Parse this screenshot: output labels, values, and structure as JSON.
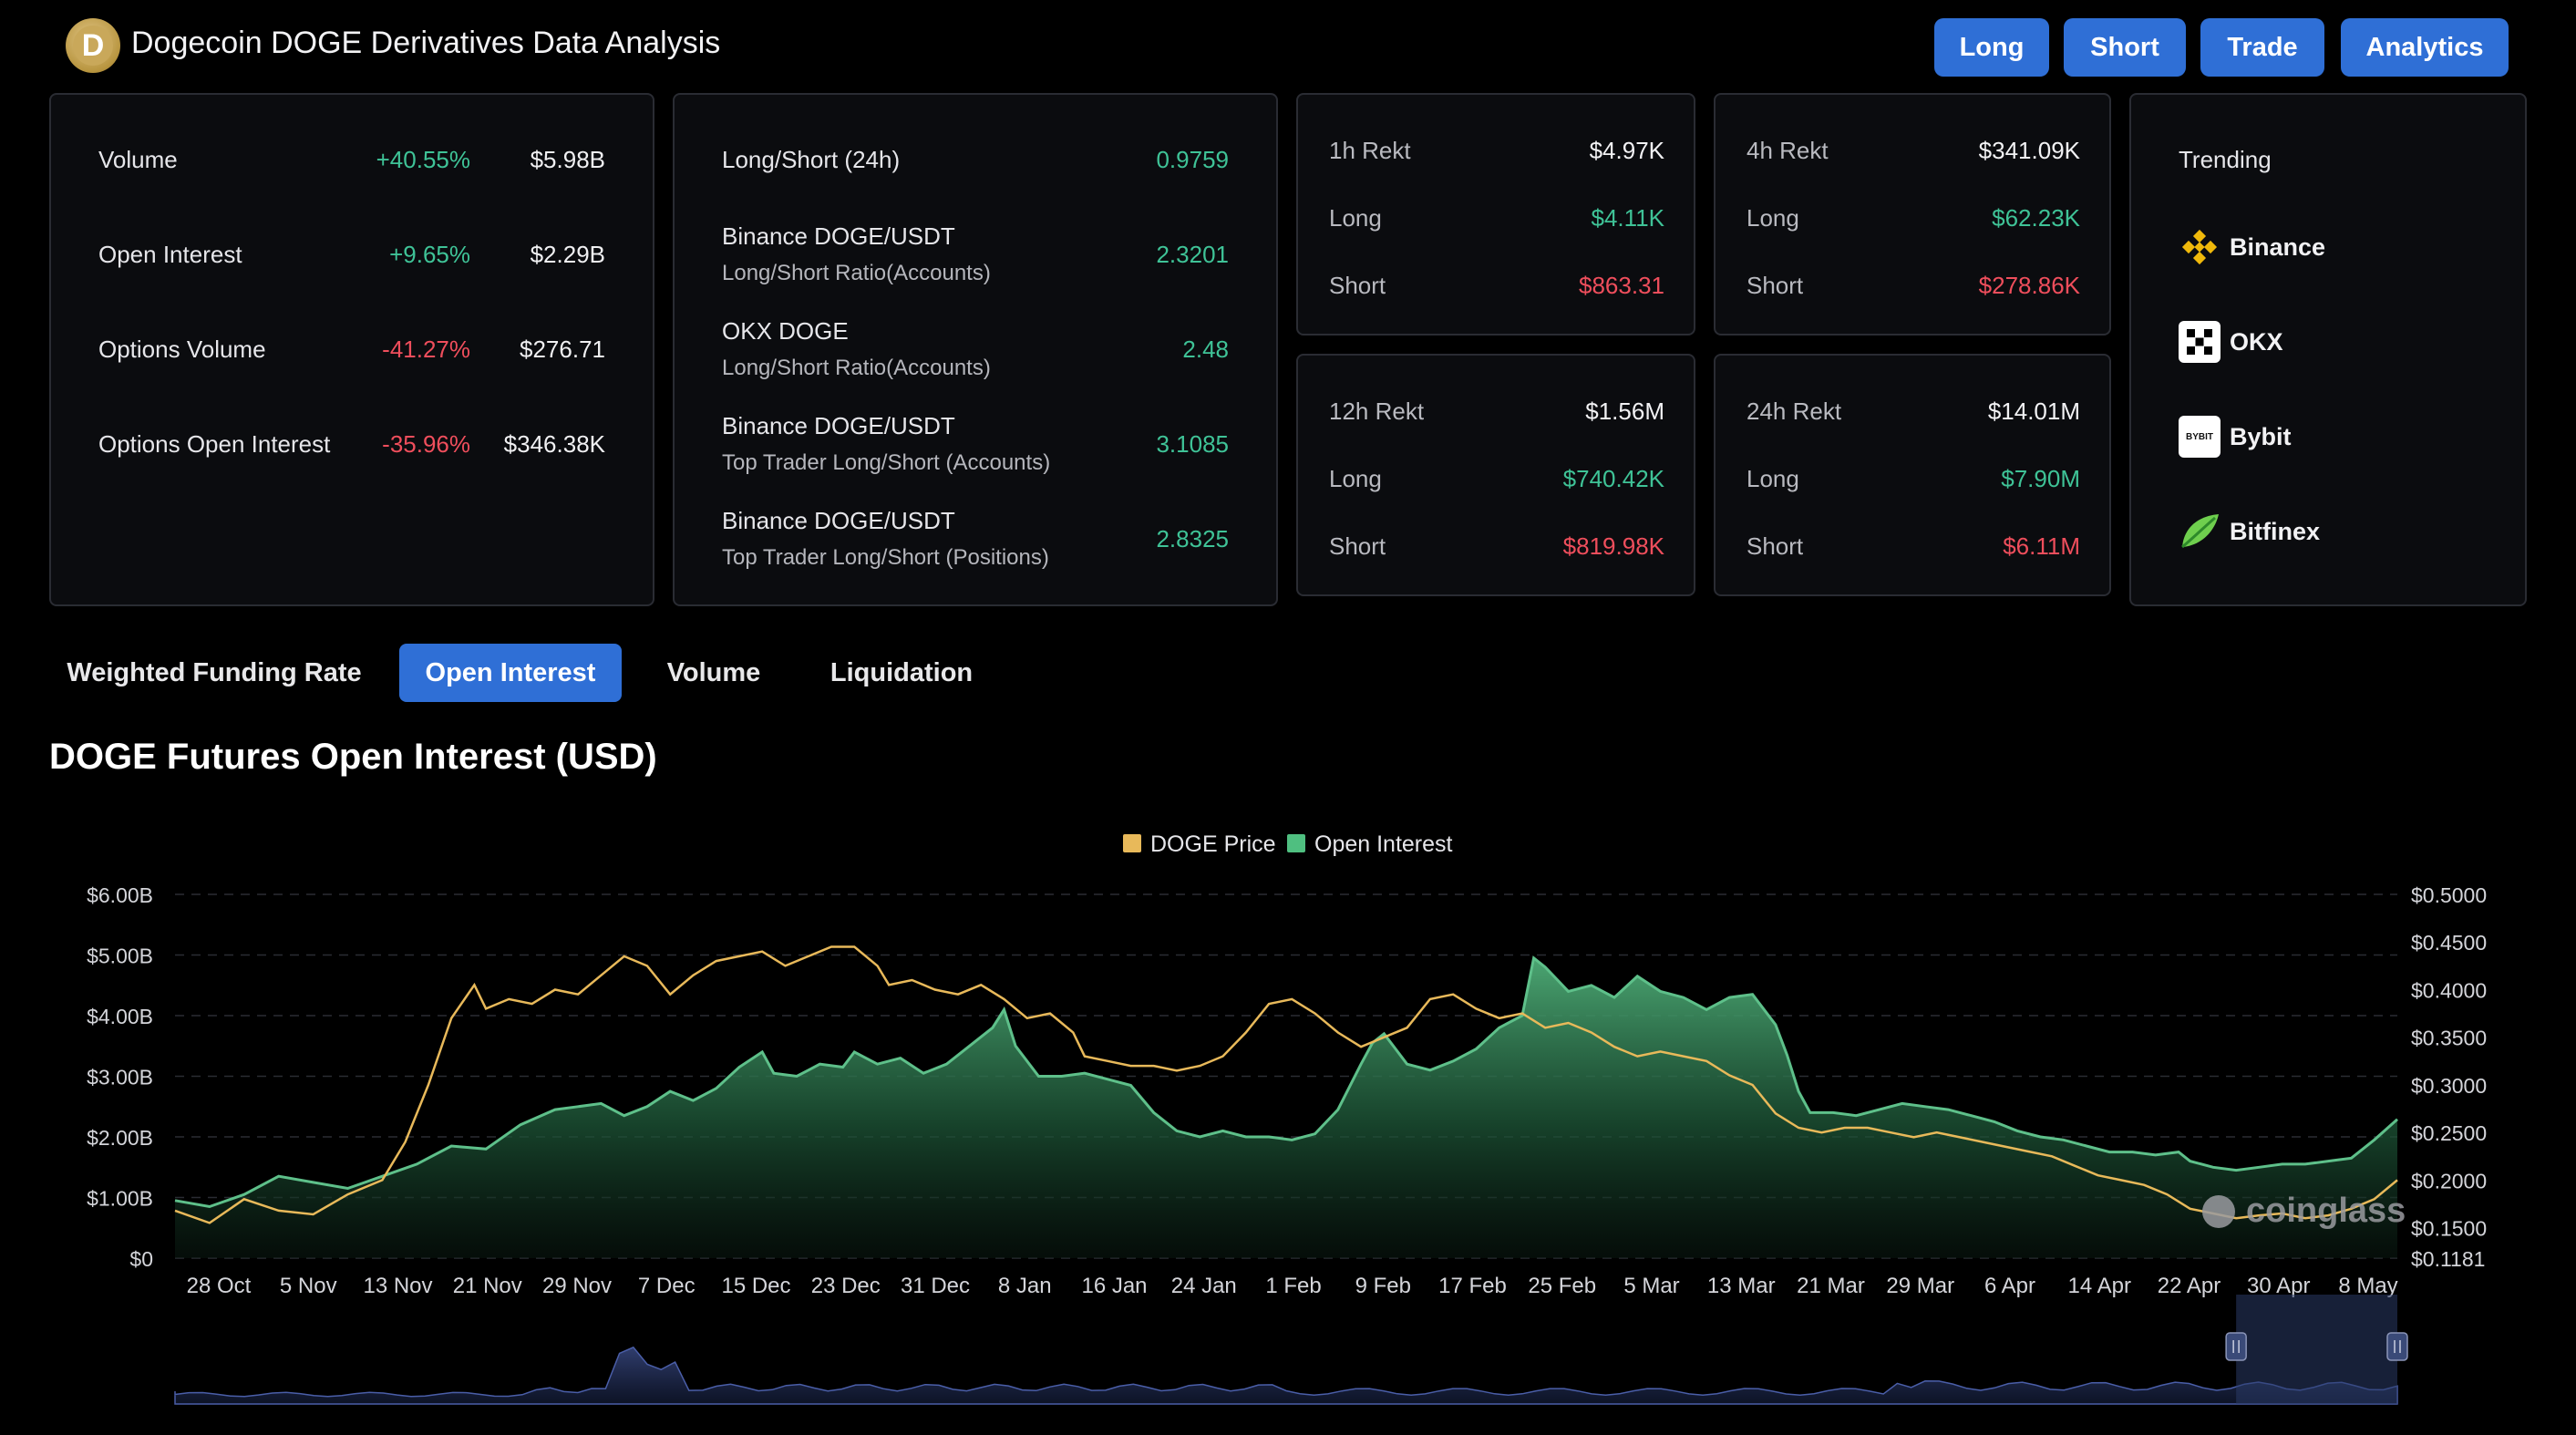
{
  "header": {
    "title": "Dogecoin DOGE Derivatives Data Analysis",
    "logo_glyph": "D",
    "buttons": [
      "Long",
      "Short",
      "Trade",
      "Analytics"
    ]
  },
  "summary": [
    {
      "label": "Volume",
      "change": "+40.55%",
      "value": "$5.98B",
      "positive": true
    },
    {
      "label": "Open Interest",
      "change": "+9.65%",
      "value": "$2.29B",
      "positive": true
    },
    {
      "label": "Options Volume",
      "change": "-41.27%",
      "value": "$276.71",
      "positive": false
    },
    {
      "label": "Options Open Interest",
      "change": "-35.96%",
      "value": "$346.38K",
      "positive": false
    }
  ],
  "long_short": {
    "title": "Long/Short (24h)",
    "title_value": "0.9759",
    "rows": [
      {
        "line1": "Binance DOGE/USDT",
        "line2": "Long/Short Ratio(Accounts)",
        "value": "2.3201"
      },
      {
        "line1": "OKX DOGE",
        "line2": "Long/Short Ratio(Accounts)",
        "value": "2.48"
      },
      {
        "line1": "Binance DOGE/USDT",
        "line2": "Top Trader Long/Short (Accounts)",
        "value": "3.1085"
      },
      {
        "line1": "Binance DOGE/USDT",
        "line2": "Top Trader Long/Short (Positions)",
        "value": "2.8325"
      }
    ]
  },
  "rekt": [
    {
      "title": "1h Rekt",
      "total": "$4.97K",
      "long_label": "Long",
      "long": "$4.11K",
      "short_label": "Short",
      "short": "$863.31"
    },
    {
      "title": "4h Rekt",
      "total": "$341.09K",
      "long_label": "Long",
      "long": "$62.23K",
      "short_label": "Short",
      "short": "$278.86K"
    },
    {
      "title": "12h Rekt",
      "total": "$1.56M",
      "long_label": "Long",
      "long": "$740.42K",
      "short_label": "Short",
      "short": "$819.98K"
    },
    {
      "title": "24h Rekt",
      "total": "$14.01M",
      "long_label": "Long",
      "long": "$7.90M",
      "short_label": "Short",
      "short": "$6.11M"
    }
  ],
  "trending": {
    "title": "Trending",
    "items": [
      {
        "name": "Binance",
        "icon": "binance-icon",
        "logo_text": ""
      },
      {
        "name": "OKX",
        "icon": "okx-icon",
        "logo_text": ""
      },
      {
        "name": "Bybit",
        "icon": "bybit-icon",
        "logo_text": "BYBIT"
      },
      {
        "name": "Bitfinex",
        "icon": "bitfinex-icon",
        "logo_text": ""
      }
    ]
  },
  "tabs": [
    "Weighted Funding Rate",
    "Open Interest",
    "Volume",
    "Liquidation"
  ],
  "active_tab": 1,
  "watermark": "coinglass",
  "colors": {
    "accent": "#2f6fd6",
    "positive": "#3fc397",
    "negative": "#ef4e5c",
    "price_line": "#e8b95a",
    "oi_line": "#3f9a69"
  },
  "chart_data": {
    "type": "area",
    "title": "DOGE Futures Open Interest (USD)",
    "legend": [
      "DOGE Price",
      "Open Interest"
    ],
    "legend_position": "top-center",
    "x_tick_labels": [
      "28 Oct",
      "5 Nov",
      "13 Nov",
      "21 Nov",
      "29 Nov",
      "7 Dec",
      "15 Dec",
      "23 Dec",
      "31 Dec",
      "8 Jan",
      "16 Jan",
      "24 Jan",
      "1 Feb",
      "9 Feb",
      "17 Feb",
      "25 Feb",
      "5 Mar",
      "13 Mar",
      "21 Mar",
      "29 Mar",
      "6 Apr",
      "14 Apr",
      "22 Apr",
      "30 Apr",
      "8 May"
    ],
    "y_left_labels": [
      "$0",
      "$1.00B",
      "$2.00B",
      "$3.00B",
      "$4.00B",
      "$5.00B",
      "$6.00B"
    ],
    "y_right_labels": [
      "$0.1181",
      "$0.1500",
      "$0.2000",
      "$0.2500",
      "$0.3000",
      "$0.3500",
      "$0.4000",
      "$0.4500",
      "$0.5000"
    ],
    "y_left_range": [
      0,
      6
    ],
    "y_right_range": [
      0.1181,
      0.5
    ],
    "x_range": [
      0,
      193
    ],
    "grid": true,
    "series": [
      {
        "name": "Open Interest",
        "unit": "B USD",
        "axis": "left",
        "points": [
          [
            0,
            0.95
          ],
          [
            3,
            0.85
          ],
          [
            6,
            1.05
          ],
          [
            9,
            1.35
          ],
          [
            12,
            1.25
          ],
          [
            15,
            1.15
          ],
          [
            18,
            1.35
          ],
          [
            21,
            1.55
          ],
          [
            24,
            1.85
          ],
          [
            27,
            1.8
          ],
          [
            30,
            2.2
          ],
          [
            33,
            2.45
          ],
          [
            35,
            2.5
          ],
          [
            37,
            2.55
          ],
          [
            39,
            2.35
          ],
          [
            41,
            2.5
          ],
          [
            43,
            2.75
          ],
          [
            45,
            2.6
          ],
          [
            47,
            2.8
          ],
          [
            49,
            3.15
          ],
          [
            51,
            3.4
          ],
          [
            52,
            3.05
          ],
          [
            54,
            3.0
          ],
          [
            56,
            3.2
          ],
          [
            58,
            3.15
          ],
          [
            59,
            3.4
          ],
          [
            61,
            3.2
          ],
          [
            63,
            3.3
          ],
          [
            65,
            3.05
          ],
          [
            67,
            3.2
          ],
          [
            69,
            3.5
          ],
          [
            71,
            3.8
          ],
          [
            72,
            4.1
          ],
          [
            73,
            3.5
          ],
          [
            75,
            3.0
          ],
          [
            77,
            3.0
          ],
          [
            79,
            3.05
          ],
          [
            81,
            2.95
          ],
          [
            83,
            2.85
          ],
          [
            85,
            2.4
          ],
          [
            87,
            2.1
          ],
          [
            89,
            2.0
          ],
          [
            91,
            2.1
          ],
          [
            93,
            2.0
          ],
          [
            95,
            2.0
          ],
          [
            97,
            1.95
          ],
          [
            99,
            2.05
          ],
          [
            101,
            2.45
          ],
          [
            103,
            3.2
          ],
          [
            104,
            3.55
          ],
          [
            105,
            3.7
          ],
          [
            107,
            3.2
          ],
          [
            109,
            3.1
          ],
          [
            111,
            3.25
          ],
          [
            113,
            3.45
          ],
          [
            115,
            3.8
          ],
          [
            117,
            4.0
          ],
          [
            118,
            4.95
          ],
          [
            119,
            4.8
          ],
          [
            120,
            4.6
          ],
          [
            121,
            4.4
          ],
          [
            123,
            4.5
          ],
          [
            125,
            4.3
          ],
          [
            127,
            4.65
          ],
          [
            129,
            4.4
          ],
          [
            131,
            4.3
          ],
          [
            133,
            4.1
          ],
          [
            135,
            4.3
          ],
          [
            137,
            4.35
          ],
          [
            139,
            3.85
          ],
          [
            140,
            3.35
          ],
          [
            141,
            2.75
          ],
          [
            142,
            2.4
          ],
          [
            144,
            2.4
          ],
          [
            146,
            2.35
          ],
          [
            148,
            2.45
          ],
          [
            150,
            2.55
          ],
          [
            152,
            2.5
          ],
          [
            154,
            2.45
          ],
          [
            156,
            2.35
          ],
          [
            158,
            2.25
          ],
          [
            160,
            2.1
          ],
          [
            162,
            2.0
          ],
          [
            164,
            1.95
          ],
          [
            166,
            1.85
          ],
          [
            168,
            1.75
          ],
          [
            170,
            1.75
          ],
          [
            172,
            1.7
          ],
          [
            174,
            1.75
          ],
          [
            175,
            1.6
          ],
          [
            177,
            1.5
          ],
          [
            179,
            1.45
          ],
          [
            181,
            1.5
          ],
          [
            183,
            1.55
          ],
          [
            185,
            1.55
          ],
          [
            187,
            1.6
          ],
          [
            189,
            1.65
          ],
          [
            191,
            1.95
          ],
          [
            193,
            2.29
          ]
        ]
      },
      {
        "name": "DOGE Price",
        "unit": "USD",
        "axis": "right",
        "points": [
          [
            0,
            0.168
          ],
          [
            3,
            0.155
          ],
          [
            6,
            0.18
          ],
          [
            9,
            0.168
          ],
          [
            12,
            0.164
          ],
          [
            15,
            0.185
          ],
          [
            18,
            0.2
          ],
          [
            20,
            0.24
          ],
          [
            22,
            0.3
          ],
          [
            24,
            0.37
          ],
          [
            26,
            0.405
          ],
          [
            27,
            0.38
          ],
          [
            29,
            0.39
          ],
          [
            31,
            0.385
          ],
          [
            33,
            0.4
          ],
          [
            35,
            0.395
          ],
          [
            37,
            0.415
          ],
          [
            39,
            0.435
          ],
          [
            41,
            0.425
          ],
          [
            43,
            0.395
          ],
          [
            45,
            0.415
          ],
          [
            47,
            0.43
          ],
          [
            49,
            0.435
          ],
          [
            51,
            0.44
          ],
          [
            53,
            0.425
          ],
          [
            55,
            0.435
          ],
          [
            57,
            0.445
          ],
          [
            59,
            0.445
          ],
          [
            61,
            0.425
          ],
          [
            62,
            0.405
          ],
          [
            64,
            0.41
          ],
          [
            66,
            0.4
          ],
          [
            68,
            0.395
          ],
          [
            70,
            0.405
          ],
          [
            72,
            0.39
          ],
          [
            74,
            0.37
          ],
          [
            76,
            0.375
          ],
          [
            78,
            0.355
          ],
          [
            79,
            0.33
          ],
          [
            81,
            0.325
          ],
          [
            83,
            0.32
          ],
          [
            85,
            0.32
          ],
          [
            87,
            0.315
          ],
          [
            89,
            0.32
          ],
          [
            91,
            0.33
          ],
          [
            93,
            0.355
          ],
          [
            95,
            0.385
          ],
          [
            97,
            0.39
          ],
          [
            99,
            0.375
          ],
          [
            101,
            0.355
          ],
          [
            103,
            0.34
          ],
          [
            105,
            0.35
          ],
          [
            107,
            0.36
          ],
          [
            109,
            0.39
          ],
          [
            111,
            0.395
          ],
          [
            113,
            0.38
          ],
          [
            115,
            0.37
          ],
          [
            117,
            0.375
          ],
          [
            119,
            0.36
          ],
          [
            121,
            0.365
          ],
          [
            123,
            0.355
          ],
          [
            125,
            0.34
          ],
          [
            127,
            0.33
          ],
          [
            129,
            0.335
          ],
          [
            131,
            0.33
          ],
          [
            133,
            0.325
          ],
          [
            135,
            0.31
          ],
          [
            137,
            0.3
          ],
          [
            139,
            0.27
          ],
          [
            141,
            0.255
          ],
          [
            143,
            0.25
          ],
          [
            145,
            0.255
          ],
          [
            147,
            0.255
          ],
          [
            149,
            0.25
          ],
          [
            151,
            0.245
          ],
          [
            153,
            0.25
          ],
          [
            155,
            0.245
          ],
          [
            157,
            0.24
          ],
          [
            159,
            0.235
          ],
          [
            161,
            0.23
          ],
          [
            163,
            0.225
          ],
          [
            165,
            0.215
          ],
          [
            167,
            0.205
          ],
          [
            169,
            0.2
          ],
          [
            171,
            0.195
          ],
          [
            173,
            0.185
          ],
          [
            175,
            0.17
          ],
          [
            177,
            0.165
          ],
          [
            179,
            0.16
          ],
          [
            181,
            0.163
          ],
          [
            183,
            0.165
          ],
          [
            185,
            0.16
          ],
          [
            187,
            0.163
          ],
          [
            189,
            0.17
          ],
          [
            191,
            0.18
          ],
          [
            193,
            0.2
          ]
        ]
      }
    ]
  },
  "navigator": {
    "selected_from": 179,
    "selected_to": 193
  }
}
